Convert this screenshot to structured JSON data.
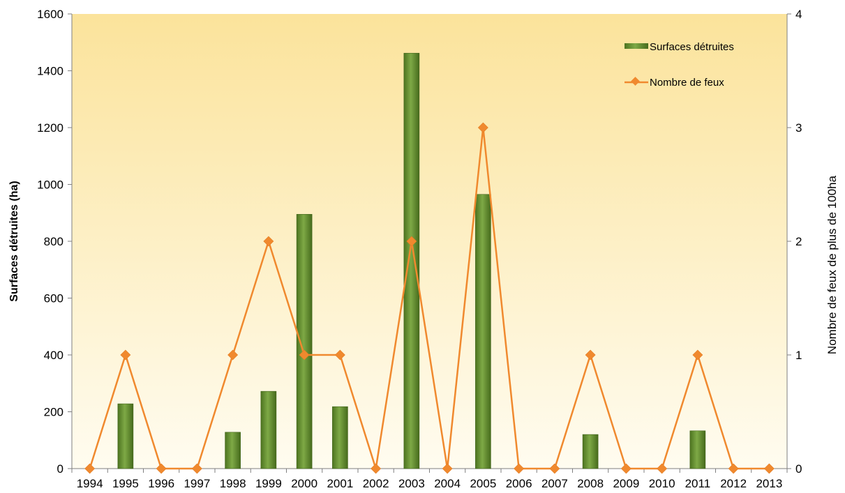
{
  "chart_data": {
    "type": "bar",
    "categories": [
      "1994",
      "1995",
      "1996",
      "1997",
      "1998",
      "1999",
      "2000",
      "2001",
      "2002",
      "2003",
      "2004",
      "2005",
      "2006",
      "2007",
      "2008",
      "2009",
      "2010",
      "2011",
      "2012",
      "2013"
    ],
    "series": [
      {
        "name": "Surfaces détruites",
        "type": "bar",
        "axis": "left",
        "color": "#5e8a2a",
        "values": [
          0,
          228,
          0,
          0,
          128,
          272,
          895,
          218,
          0,
          1462,
          0,
          965,
          0,
          0,
          120,
          0,
          0,
          133,
          0,
          0
        ]
      },
      {
        "name": "Nombre de feux",
        "type": "line",
        "axis": "right",
        "color": "#f0892e",
        "values": [
          0,
          1,
          0,
          0,
          1,
          2,
          1,
          1,
          0,
          2,
          0,
          3,
          0,
          0,
          1,
          0,
          0,
          1,
          0,
          0
        ]
      }
    ],
    "ylabel": "Surfaces détruites (ha)",
    "ylabel_right": "Nombre de feux de plus de 100ha",
    "xlabel": "",
    "ylim": [
      0,
      1600
    ],
    "y_ticks": [
      "0",
      "200",
      "400",
      "600",
      "800",
      "1000",
      "1200",
      "1400",
      "1600"
    ],
    "ylim_right": [
      0,
      4
    ],
    "y_ticks_right": [
      "0",
      "1",
      "2",
      "3",
      "4"
    ],
    "legend_position": "top-right",
    "background": [
      "#fbe5a3",
      "#fffdf2"
    ]
  }
}
